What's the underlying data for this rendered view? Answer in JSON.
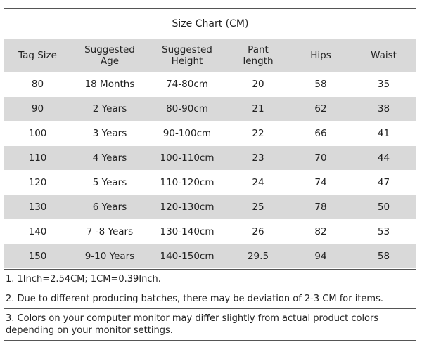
{
  "title": "Size Chart (CM)",
  "table": {
    "headers": [
      "Tag Size",
      "Suggested Age",
      "Suggested Height",
      "Pant length",
      "Hips",
      "Waist"
    ],
    "rows": [
      [
        "80",
        "18 Months",
        "74-80cm",
        "20",
        "58",
        "35"
      ],
      [
        "90",
        "2 Years",
        "80-90cm",
        "21",
        "62",
        "38"
      ],
      [
        "100",
        "3 Years",
        "90-100cm",
        "22",
        "66",
        "41"
      ],
      [
        "110",
        "4 Years",
        "100-110cm",
        "23",
        "70",
        "44"
      ],
      [
        "120",
        "5 Years",
        "110-120cm",
        "24",
        "74",
        "47"
      ],
      [
        "130",
        "6 Years",
        "120-130cm",
        "25",
        "78",
        "50"
      ],
      [
        "140",
        "7 -8 Years",
        "130-140cm",
        "26",
        "82",
        "53"
      ],
      [
        "150",
        "9-10 Years",
        "140-150cm",
        "29.5",
        "94",
        "58"
      ]
    ]
  },
  "notes": [
    "1. 1Inch=2.54CM; 1CM=0.39Inch.",
    "2. Due to different producing batches, there may be deviation of 2-3 CM for items.",
    "3. Colors on your computer monitor may differ slightly from actual product colors depending on your monitor settings."
  ]
}
